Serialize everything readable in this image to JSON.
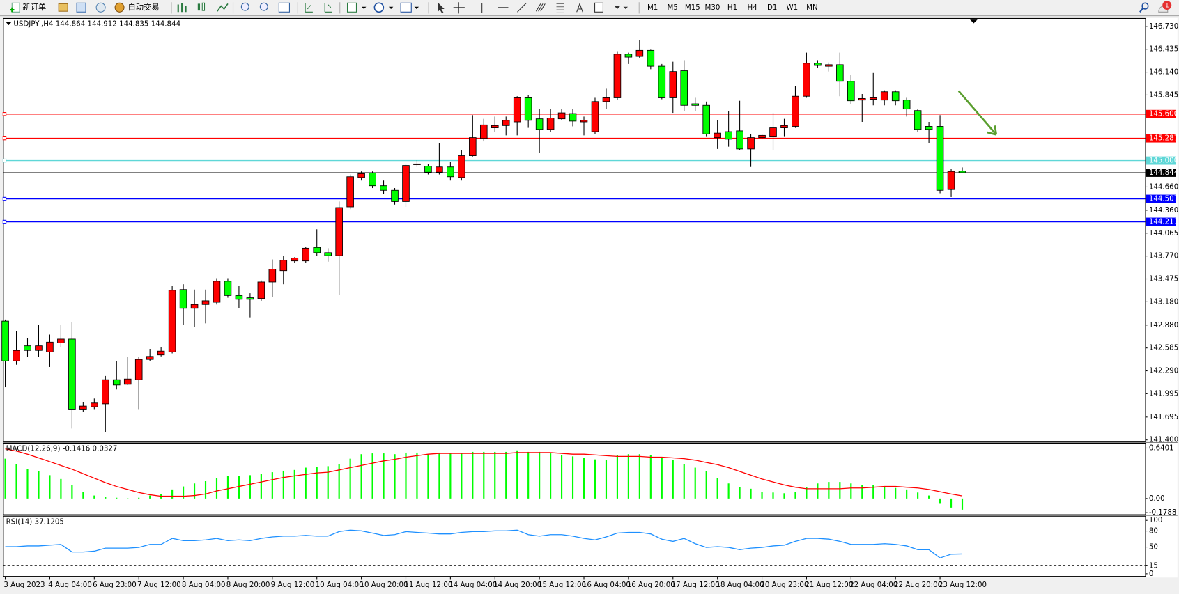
{
  "toolbar": {
    "new_order": "新订单",
    "auto_trading": "自动交易",
    "timeframes": [
      "M1",
      "M5",
      "M15",
      "M30",
      "H1",
      "H4",
      "D1",
      "W1",
      "MN"
    ],
    "notifications": 1
  },
  "chart_data": [
    {
      "type": "candlestick",
      "symbol": "USDJPY-,H4",
      "up_color": "#ff0000",
      "down_color": "#00ff00",
      "categories": [
        "3 Aug 2023",
        null,
        null,
        null,
        "4 Aug 04:00",
        null,
        null,
        null,
        "6 Aug 23:00",
        null,
        null,
        null,
        "7 Aug 12:00",
        null,
        null,
        null,
        "8 Aug 04:00",
        null,
        null,
        null,
        "8 Aug 20:00",
        null,
        null,
        null,
        "9 Aug 12:00",
        null,
        null,
        null,
        "10 Aug 04:00",
        null,
        null,
        null,
        "10 Aug 20:00",
        null,
        null,
        null,
        "11 Aug 12:00",
        null,
        null,
        null,
        "14 Aug 04:00",
        null,
        null,
        null,
        "14 Aug 20:00",
        null,
        null,
        null,
        "15 Aug 12:00",
        null,
        null,
        null,
        "16 Aug 04:00",
        null,
        null,
        null,
        "16 Aug 20:00",
        null,
        null,
        null,
        "17 Aug 12:00",
        null,
        null,
        null,
        "18 Aug 04:00",
        null,
        null,
        null,
        "20 Aug 23:00",
        null,
        null,
        null,
        "21 Aug 12:00",
        null,
        null,
        null,
        "22 Aug 04:00",
        null,
        null,
        null,
        "22 Aug 20:00",
        null,
        null,
        null,
        "23 Aug 12:00",
        null,
        null
      ],
      "open": [
        142.931,
        142.418,
        142.612,
        142.553,
        142.534,
        142.65,
        142.699,
        141.788,
        141.827,
        141.865,
        142.176,
        142.117,
        142.176,
        142.437,
        142.495,
        142.534,
        143.338,
        143.096,
        143.145,
        143.174,
        143.445,
        143.261,
        143.232,
        143.222,
        143.435,
        143.581,
        143.707,
        143.707,
        143.881,
        143.813,
        143.774,
        144.404,
        144.782,
        144.84,
        144.676,
        144.617,
        144.472,
        144.947,
        144.928,
        144.85,
        144.918,
        144.782,
        145.063,
        145.286,
        145.422,
        145.451,
        145.499,
        145.809,
        145.538,
        145.402,
        145.538,
        145.606,
        145.499,
        145.373,
        145.761,
        145.809,
        146.371,
        146.342,
        146.42,
        146.216,
        145.809,
        146.158,
        145.732,
        145.712,
        145.296,
        145.373,
        145.383,
        145.15,
        145.296,
        145.305,
        145.422,
        145.441,
        145.829,
        146.255,
        146.216,
        146.236,
        146.022,
        145.78,
        145.79,
        145.78,
        145.887,
        145.78,
        145.645,
        145.441,
        145.441,
        144.627,
        144.864
      ],
      "high": [
        142.951,
        142.805,
        142.708,
        142.883,
        142.757,
        142.883,
        142.922,
        141.885,
        141.933,
        142.224,
        142.418,
        142.466,
        142.466,
        142.573,
        142.592,
        143.387,
        143.406,
        143.338,
        143.338,
        143.484,
        143.484,
        143.387,
        143.29,
        143.455,
        143.726,
        143.774,
        143.755,
        143.891,
        144.114,
        143.871,
        144.472,
        144.821,
        144.86,
        144.86,
        144.743,
        144.646,
        144.957,
        145.005,
        144.957,
        145.228,
        144.986,
        145.131,
        145.586,
        145.538,
        145.567,
        145.567,
        145.829,
        145.848,
        145.664,
        145.664,
        145.664,
        145.664,
        145.567,
        145.809,
        145.926,
        146.41,
        146.391,
        146.555,
        146.429,
        146.245,
        146.274,
        146.294,
        145.809,
        145.761,
        145.519,
        145.635,
        145.771,
        145.344,
        145.344,
        145.615,
        145.538,
        145.964,
        146.391,
        146.294,
        146.265,
        146.391,
        146.1,
        145.858,
        146.129,
        145.906,
        145.906,
        145.809,
        145.664,
        145.499,
        145.586,
        144.889,
        144.912
      ],
      "low": [
        142.079,
        142.369,
        142.466,
        142.466,
        142.34,
        142.592,
        141.546,
        141.759,
        141.788,
        141.497,
        142.05,
        142.108,
        141.788,
        142.418,
        142.476,
        142.515,
        142.883,
        142.854,
        142.902,
        143.145,
        143.232,
        143.096,
        142.98,
        143.193,
        143.241,
        143.406,
        143.677,
        143.677,
        143.774,
        143.697,
        143.271,
        144.375,
        144.743,
        144.646,
        144.569,
        144.433,
        144.404,
        144.918,
        144.821,
        144.821,
        144.743,
        144.743,
        145.053,
        145.247,
        145.373,
        145.325,
        145.325,
        145.422,
        145.102,
        145.373,
        145.519,
        145.441,
        145.325,
        145.344,
        145.664,
        145.78,
        146.245,
        146.323,
        146.178,
        145.79,
        145.615,
        145.635,
        145.635,
        145.305,
        145.15,
        145.179,
        145.131,
        144.918,
        145.276,
        145.131,
        145.305,
        145.422,
        145.809,
        146.197,
        146.148,
        145.829,
        145.732,
        145.499,
        145.712,
        145.712,
        145.712,
        145.567,
        145.373,
        145.228,
        144.579,
        144.53,
        144.835
      ],
      "close": [
        142.418,
        142.553,
        142.553,
        142.612,
        142.66,
        142.699,
        141.788,
        141.836,
        141.875,
        142.176,
        142.108,
        142.185,
        142.437,
        142.476,
        142.544,
        143.329,
        143.096,
        143.145,
        143.193,
        143.445,
        143.261,
        143.212,
        143.212,
        143.435,
        143.6,
        143.716,
        143.745,
        143.871,
        143.813,
        143.774,
        144.395,
        144.792,
        144.831,
        144.676,
        144.617,
        144.472,
        144.937,
        144.957,
        144.85,
        144.918,
        144.792,
        145.063,
        145.296,
        145.46,
        145.451,
        145.519,
        145.809,
        145.519,
        145.402,
        145.548,
        145.615,
        145.509,
        145.519,
        145.761,
        145.809,
        146.371,
        146.333,
        146.42,
        146.216,
        145.809,
        146.148,
        145.712,
        145.712,
        145.344,
        145.354,
        145.276,
        145.15,
        145.296,
        145.325,
        145.422,
        145.451,
        145.829,
        146.255,
        146.226,
        146.236,
        146.022,
        145.771,
        145.8,
        145.809,
        145.887,
        145.771,
        145.664,
        145.402,
        145.402,
        144.617,
        144.86,
        144.844
      ],
      "ylim": [
        141.381,
        146.837
      ],
      "yticks": [
        {
          "value": 146.73,
          "label": "146.730"
        },
        146.435,
        {
          "value": 146.14,
          "label": "146.140"
        },
        145.845,
        {
          "value": 144.66,
          "label": "144.660"
        },
        {
          "value": 144.36,
          "label": "144.360"
        },
        144.065,
        {
          "value": 143.77,
          "label": "143.770"
        },
        143.475,
        {
          "value": 143.18,
          "label": "143.180"
        },
        {
          "value": 142.88,
          "label": "142.880"
        },
        142.585,
        {
          "value": 142.29,
          "label": "142.290"
        },
        141.995,
        141.695,
        {
          "value": 141.4,
          "label": "141.400"
        }
      ],
      "levels": {
        "values": [
          145.6,
          145.287,
          145,
          144.507,
          144.211
        ],
        "value_labels": [
          "145.600",
          "145.287",
          "145.000",
          "144.507",
          "144.211"
        ],
        "colors": [
          "#ff0000",
          "#ff0000",
          "#5fd7d7",
          "#0000ff",
          "#0000ff"
        ]
      },
      "current_price_color": "#000000"
    },
    {
      "type": "macd",
      "title": "MACD(12,26,9)",
      "series": [
        {
          "name": "main",
          "color": "#00ff00",
          "values": [
            0.506,
            0.439,
            0.372,
            0.344,
            0.296,
            0.248,
            0.172,
            0.086,
            0.038,
            0.019,
            0.01,
            0.002,
            0.01,
            0.038,
            0.057,
            0.115,
            0.153,
            0.191,
            0.22,
            0.258,
            0.287,
            0.287,
            0.296,
            0.315,
            0.334,
            0.353,
            0.363,
            0.392,
            0.401,
            0.411,
            0.439,
            0.506,
            0.563,
            0.573,
            0.573,
            0.563,
            0.583,
            0.583,
            0.563,
            0.583,
            0.573,
            0.573,
            0.592,
            0.592,
            0.592,
            0.592,
            0.611,
            0.592,
            0.592,
            0.573,
            0.554,
            0.535,
            0.516,
            0.497,
            0.487,
            0.554,
            0.563,
            0.563,
            0.554,
            0.516,
            0.487,
            0.439,
            0.392,
            0.344,
            0.258,
            0.191,
            0.143,
            0.124,
            0.086,
            0.076,
            0.067,
            0.086,
            0.143,
            0.191,
            0.21,
            0.21,
            0.191,
            0.172,
            0.172,
            0.153,
            0.134,
            0.115,
            0.076,
            0.038,
            -0.067,
            -0.115,
            -0.1416
          ]
        },
        {
          "name": "signal",
          "color": "#ff0000",
          "values": [
            0.63,
            0.602,
            0.563,
            0.516,
            0.468,
            0.42,
            0.372,
            0.315,
            0.258,
            0.201,
            0.153,
            0.115,
            0.076,
            0.048,
            0.029,
            0.029,
            0.029,
            0.038,
            0.057,
            0.096,
            0.124,
            0.153,
            0.181,
            0.21,
            0.239,
            0.267,
            0.287,
            0.306,
            0.325,
            0.334,
            0.363,
            0.392,
            0.42,
            0.449,
            0.478,
            0.497,
            0.525,
            0.544,
            0.563,
            0.573,
            0.573,
            0.573,
            0.573,
            0.573,
            0.573,
            0.573,
            0.583,
            0.583,
            0.583,
            0.583,
            0.573,
            0.563,
            0.563,
            0.554,
            0.544,
            0.535,
            0.535,
            0.535,
            0.525,
            0.525,
            0.516,
            0.506,
            0.487,
            0.458,
            0.43,
            0.392,
            0.344,
            0.296,
            0.248,
            0.21,
            0.172,
            0.143,
            0.124,
            0.124,
            0.124,
            0.124,
            0.134,
            0.134,
            0.143,
            0.153,
            0.153,
            0.143,
            0.134,
            0.115,
            0.086,
            0.057,
            0.0327
          ]
        }
      ],
      "ylim": [
        -0.2006,
        0.697
      ],
      "yticks": [
        0.6401,
        {
          "value": 0,
          "label": "0.00"
        },
        -0.1788
      ]
    },
    {
      "type": "line",
      "title": "RSI(14)",
      "color": "#1e90ff",
      "values": [
        50.7,
        50.7,
        52.1,
        52.1,
        53.5,
        54.9,
        40.8,
        40.8,
        42.3,
        47.9,
        47.9,
        47.9,
        49.3,
        54.9,
        54.9,
        66.2,
        62.0,
        62.0,
        63.4,
        66.2,
        62.0,
        63.4,
        62.0,
        66.2,
        69.0,
        70.4,
        70.4,
        71.8,
        70.4,
        70.4,
        78.9,
        81.7,
        80.3,
        76.1,
        71.8,
        73.2,
        78.9,
        77.5,
        76.1,
        74.6,
        74.6,
        77.5,
        78.9,
        78.9,
        80.3,
        80.3,
        81.7,
        73.2,
        70.4,
        73.2,
        73.2,
        70.4,
        66.2,
        63.4,
        69.0,
        76.1,
        77.5,
        77.5,
        74.6,
        64.8,
        60.6,
        66.2,
        56.3,
        49.3,
        50.7,
        49.3,
        45.1,
        47.9,
        49.3,
        52.1,
        53.5,
        60.6,
        66.2,
        66.2,
        64.8,
        60.6,
        54.9,
        54.9,
        54.9,
        56.3,
        54.9,
        52.1,
        45.1,
        45.1,
        29.6,
        36.6,
        37.1205
      ],
      "ylim": [
        -4.2,
        108.5
      ],
      "yticks": [
        100,
        80,
        50,
        15,
        0
      ],
      "dashed_levels": [
        80,
        50,
        15
      ]
    }
  ]
}
